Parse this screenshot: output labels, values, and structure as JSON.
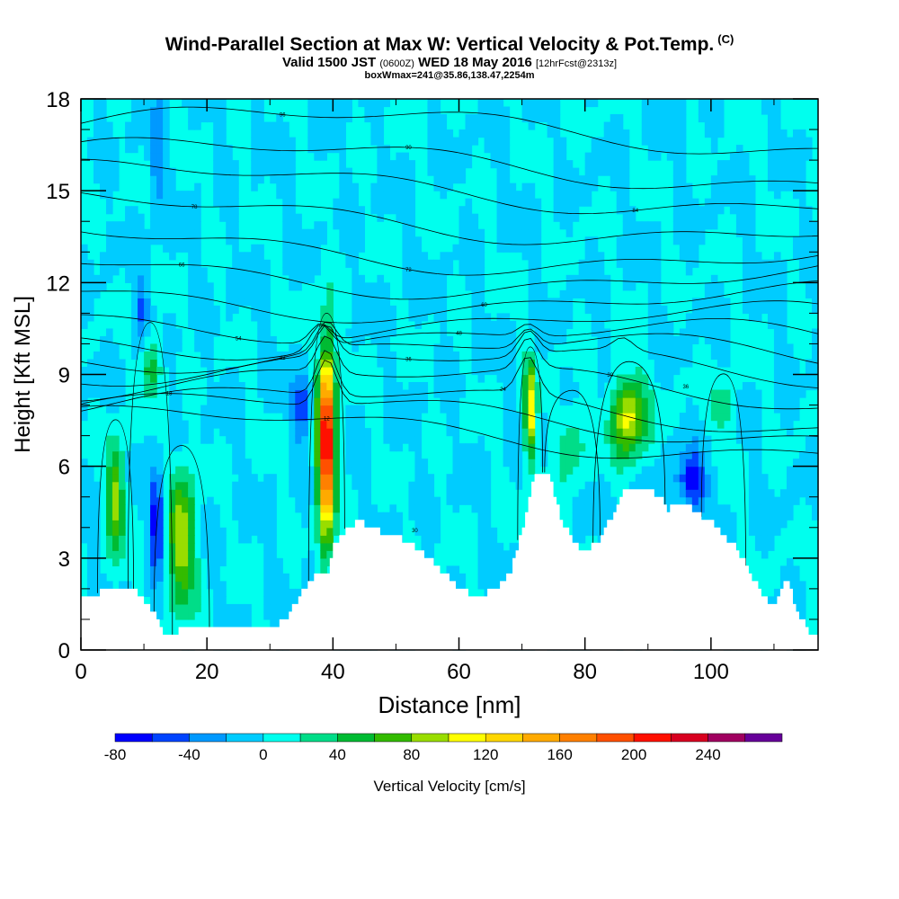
{
  "header": {
    "title": "Wind-Parallel Section at Max W: Vertical Velocity & Pot.Temp.",
    "copyright": "(C)",
    "subtitle_main": "Valid 1500 JST",
    "subtitle_utc": "(0600Z)",
    "subtitle_date": "WED 18 May 2016",
    "subtitle_fcst": "[12hrFcst@2313z]",
    "note": "boxWmax=241@35.86,138.47,2254m"
  },
  "chart_data": {
    "type": "heatmap",
    "xlabel": "Distance [nm]",
    "ylabel": "Height [Kft MSL]",
    "xlim": [
      0,
      117
    ],
    "ylim": [
      0,
      18
    ],
    "x_ticks": [
      "0",
      "20",
      "40",
      "60",
      "80",
      "100"
    ],
    "y_ticks": [
      "0",
      "3",
      "6",
      "9",
      "12",
      "15",
      "18"
    ],
    "colorbar": {
      "label": "Vertical Velocity [cm/s]",
      "tick_labels": [
        "-80",
        "-40",
        "0",
        "40",
        "80",
        "120",
        "160",
        "200",
        "240"
      ],
      "levels": [
        -80,
        -60,
        -40,
        -20,
        0,
        20,
        40,
        60,
        80,
        100,
        120,
        140,
        160,
        180,
        200,
        220,
        240,
        260
      ],
      "colors": [
        "#0000ff",
        "#0044ff",
        "#0099ff",
        "#00ccff",
        "#00ffee",
        "#00dd88",
        "#00bb33",
        "#33bb00",
        "#99dd00",
        "#ffff00",
        "#ffd700",
        "#ffaa00",
        "#ff8000",
        "#ff5000",
        "#ff1000",
        "#d80020",
        "#a00060",
        "#660099"
      ]
    },
    "background_value": 0,
    "field_features": [
      {
        "kind": "updraft",
        "x": 5.5,
        "y": 5.0,
        "w_max": 90,
        "x_halfwidth": 1.3,
        "y_halfheight": 1.8
      },
      {
        "kind": "downdraft",
        "x": 12,
        "y": 4.3,
        "w_min": -75,
        "x_halfwidth": 1.2,
        "y_halfheight": 1.6
      },
      {
        "kind": "updraft",
        "x": 16,
        "y": 3.6,
        "w_max": 100,
        "x_halfwidth": 2.0,
        "y_halfheight": 2.2
      },
      {
        "kind": "updraft",
        "x": 39,
        "y": 6.8,
        "w_max": 241,
        "x_halfwidth": 1.3,
        "y_halfheight": 3.0
      },
      {
        "kind": "downdraft",
        "x": 35,
        "y": 8.0,
        "w_min": -60,
        "x_halfwidth": 1.5,
        "y_halfheight": 1.0
      },
      {
        "kind": "updraft",
        "x": 71.3,
        "y": 7.8,
        "w_max": 120,
        "x_halfwidth": 0.9,
        "y_halfheight": 1.5
      },
      {
        "kind": "updraft",
        "x": 87,
        "y": 7.6,
        "w_max": 110,
        "x_halfwidth": 2.6,
        "y_halfheight": 1.3
      },
      {
        "kind": "downdraft",
        "x": 97,
        "y": 5.5,
        "w_min": -70,
        "x_halfwidth": 2.5,
        "y_halfheight": 0.9
      },
      {
        "kind": "downdraft",
        "x": 9.5,
        "y": 11.0,
        "w_min": -40,
        "x_halfwidth": 1.3,
        "y_halfheight": 1.2
      },
      {
        "kind": "updraft",
        "x": 11,
        "y": 9.3,
        "w_max": 55,
        "x_halfwidth": 1.6,
        "y_halfheight": 1.0
      },
      {
        "kind": "downdraft",
        "x": 12,
        "y": 16.0,
        "w_min": -35,
        "x_halfwidth": 1.2,
        "y_halfheight": 2.0
      },
      {
        "kind": "updraft",
        "x": 102,
        "y": 7.9,
        "w_max": 45,
        "x_halfwidth": 1.6,
        "y_halfheight": 0.8
      },
      {
        "kind": "updraft",
        "x": 78,
        "y": 6.8,
        "w_max": 40,
        "x_halfwidth": 2.0,
        "y_halfheight": 1.2
      }
    ],
    "terrain": {
      "x": [
        0,
        5,
        8,
        10,
        12,
        13,
        14,
        15,
        17,
        20,
        25,
        30,
        33,
        35,
        37,
        39,
        40,
        42,
        44,
        46,
        48,
        50,
        54,
        57,
        60,
        63,
        66,
        68,
        70,
        72,
        73,
        74,
        75,
        76,
        78,
        80,
        82,
        84,
        86,
        88,
        90,
        92,
        93,
        94,
        96,
        98,
        100,
        102,
        104,
        106,
        108,
        110,
        111,
        112,
        113,
        114,
        115,
        116,
        117
      ],
      "y": [
        1.7,
        2.0,
        2.0,
        1.6,
        1.0,
        0.6,
        0.4,
        0.6,
        0.7,
        0.7,
        0.7,
        0.7,
        1.2,
        1.9,
        2.4,
        2.6,
        3.4,
        4.0,
        4.2,
        4.0,
        3.8,
        3.7,
        3.2,
        2.6,
        2.0,
        1.7,
        2.1,
        2.6,
        4.1,
        5.8,
        5.8,
        5.8,
        5.0,
        4.3,
        3.5,
        3.2,
        3.6,
        4.3,
        5.2,
        5.2,
        5.2,
        4.9,
        4.6,
        4.8,
        4.8,
        4.4,
        4.2,
        3.7,
        3.3,
        2.5,
        1.8,
        1.4,
        2.1,
        2.2,
        1.6,
        1.1,
        0.7,
        0.4,
        0.4
      ]
    },
    "isentropes": {
      "label_values": [
        "96",
        "90",
        "84",
        "78",
        "72",
        "66",
        "60",
        "54",
        "48",
        "42",
        "36",
        "30",
        "24",
        "18",
        "12"
      ],
      "lines": [
        {
          "label": "96",
          "base_y": 17.2,
          "label_x": 32,
          "dips": []
        },
        {
          "label": "90",
          "base_y": 16.1,
          "label_x": 52,
          "dips": []
        },
        {
          "label": "84",
          "base_y": 15.3,
          "label_x": 88,
          "dips": []
        },
        {
          "label": "78",
          "base_y": 14.3,
          "label_x": 18,
          "dips": []
        },
        {
          "label": "72",
          "base_y": 13.3,
          "label_x": 52,
          "dips": []
        },
        {
          "label": "66",
          "base_y": 12.5,
          "label_x": 16,
          "dips": []
        },
        {
          "label": "60",
          "base_y": 11.7,
          "label_x": 64,
          "dips": []
        },
        {
          "label": "54",
          "base_y": 11.0,
          "label_x": 25,
          "dips": [
            {
              "x": 38,
              "depth": -0.6
            }
          ]
        },
        {
          "label": "48",
          "base_y": 10.4,
          "label_x": 60,
          "dips": [
            {
              "x": 38,
              "depth": -0.8
            },
            {
              "x": 71,
              "depth": -0.4
            }
          ]
        },
        {
          "label": "42",
          "base_y": 9.9,
          "label_x": 32,
          "dips": [
            {
              "x": 39,
              "depth": -0.9
            },
            {
              "x": 71,
              "depth": -0.6
            }
          ]
        },
        {
          "label": "36",
          "base_y": 9.4,
          "label_x": 52,
          "dips": [
            {
              "x": 39,
              "depth": -1.0
            },
            {
              "x": 71,
              "depth": -0.8
            },
            {
              "x": 86,
              "depth": -0.4
            }
          ]
        },
        {
          "label": "30",
          "base_y": 8.8,
          "label_x": 84,
          "dips": [
            {
              "x": 39,
              "depth": -1.2
            },
            {
              "x": 71,
              "depth": -1.0
            }
          ]
        },
        {
          "label": "24",
          "base_y": 8.1,
          "label_x": 67,
          "dips": [
            {
              "x": 39,
              "depth": -1.5
            },
            {
              "x": 71,
              "depth": -1.2
            }
          ]
        },
        {
          "label": "18",
          "base_y": 7.8,
          "label_x": 14,
          "dips": [
            {
              "x": 39,
              "depth": -1.5
            }
          ]
        },
        {
          "label": "12",
          "base_y": 7.3,
          "label_x": 39,
          "dips": []
        }
      ],
      "low_labels": [
        {
          "label": "30",
          "x": 53,
          "y": 3.9
        },
        {
          "label": "36",
          "x": 96,
          "y": 8.6
        }
      ]
    }
  }
}
